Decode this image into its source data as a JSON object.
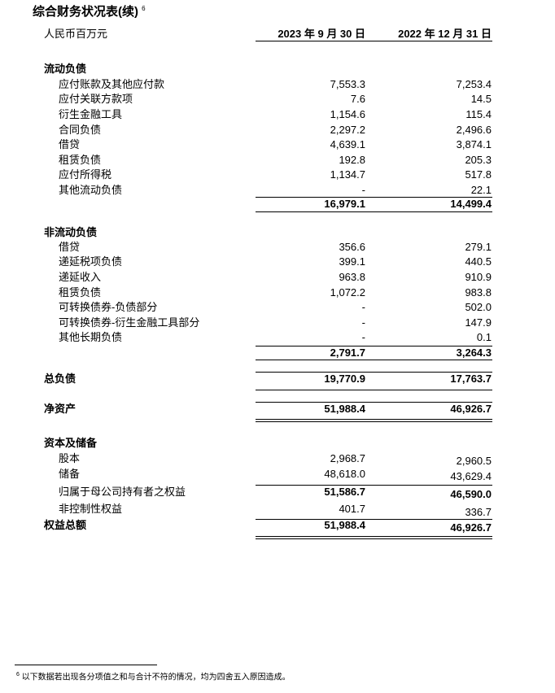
{
  "title": "综合财务状况表(续)",
  "title_footnote_ref": "6",
  "unit_label": "人民币百万元",
  "columns": [
    "2023 年 9 月 30 日",
    "2022 年 12 月 31 日"
  ],
  "current_liabilities": {
    "heading": "流动负债",
    "rows": [
      {
        "label": "应付账款及其他应付款",
        "v2023": "7,553.3",
        "v2022": "7,253.4"
      },
      {
        "label": "应付关联方款项",
        "v2023": "7.6",
        "v2022": "14.5"
      },
      {
        "label": "衍生金融工具",
        "v2023": "1,154.6",
        "v2022": "115.4"
      },
      {
        "label": "合同负债",
        "v2023": "2,297.2",
        "v2022": "2,496.6"
      },
      {
        "label": "借贷",
        "v2023": "4,639.1",
        "v2022": "3,874.1"
      },
      {
        "label": "租赁负债",
        "v2023": "192.8",
        "v2022": "205.3"
      },
      {
        "label": "应付所得税",
        "v2023": "1,134.7",
        "v2022": "517.8"
      },
      {
        "label": "其他流动负债",
        "v2023": "-",
        "v2022": "22.1"
      }
    ],
    "total": {
      "v2023": "16,979.1",
      "v2022": "14,499.4"
    }
  },
  "non_current_liabilities": {
    "heading": "非流动负债",
    "rows": [
      {
        "label": "借贷",
        "v2023": "356.6",
        "v2022": "279.1"
      },
      {
        "label": "递延税项负债",
        "v2023": "399.1",
        "v2022": "440.5"
      },
      {
        "label": "递延收入",
        "v2023": "963.8",
        "v2022": "910.9"
      },
      {
        "label": "租赁负债",
        "v2023": "1,072.2",
        "v2022": "983.8"
      },
      {
        "label": "可转换债券-负债部分",
        "v2023": "-",
        "v2022": "502.0"
      },
      {
        "label": "可转换债券-衍生金融工具部分",
        "v2023": "-",
        "v2022": "147.9"
      },
      {
        "label": "其他长期负债",
        "v2023": "-",
        "v2022": "0.1"
      }
    ],
    "total": {
      "v2023": "2,791.7",
      "v2022": "3,264.3"
    }
  },
  "total_liabilities": {
    "label": "总负债",
    "v2023": "19,770.9",
    "v2022": "17,763.7"
  },
  "net_assets": {
    "label": "净资产",
    "v2023": "51,988.4",
    "v2022": "46,926.7"
  },
  "capital_reserves": {
    "heading": "资本及储备",
    "rows": [
      {
        "label": "股本",
        "v2023": "2,968.7",
        "v2022": "2,960.5"
      },
      {
        "label": "储备",
        "v2023": "48,618.0",
        "v2022": "43,629.4"
      },
      {
        "label": "归属于母公司持有者之权益",
        "v2023": "51,586.7",
        "v2022": "46,590.0"
      },
      {
        "label": "非控制性权益",
        "v2023": "401.7",
        "v2022": "336.7"
      }
    ]
  },
  "total_equity": {
    "label": "权益总额",
    "v2023": "51,988.4",
    "v2022": "46,926.7"
  },
  "footnote": {
    "marker": "6",
    "text": "以下数据若出现各分项值之和与合计不符的情况，均为四舍五入原因造成。"
  }
}
